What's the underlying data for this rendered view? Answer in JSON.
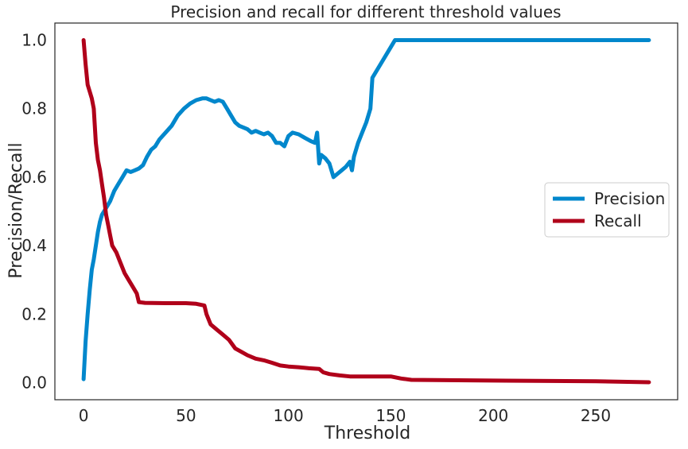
{
  "chart_data": {
    "type": "line",
    "title": "Precision and recall for different threshold values",
    "xlabel": "Threshold",
    "ylabel": "Precision/Recall",
    "xlim": [
      -14,
      290
    ],
    "ylim": [
      -0.05,
      1.05
    ],
    "x_ticks": [
      0,
      50,
      100,
      150,
      200,
      250
    ],
    "y_ticks": [
      0.0,
      0.2,
      0.4,
      0.6,
      0.8,
      1.0
    ],
    "x_tick_labels": [
      "0",
      "50",
      "100",
      "150",
      "200",
      "250"
    ],
    "y_tick_labels": [
      "0.0",
      "0.2",
      "0.4",
      "0.6",
      "0.8",
      "1.0"
    ],
    "grid": false,
    "legend": "center-right",
    "series": [
      {
        "name": "Precision",
        "color": "#0087cc",
        "points": [
          [
            0,
            0.01
          ],
          [
            1,
            0.12
          ],
          [
            2,
            0.2
          ],
          [
            3,
            0.27
          ],
          [
            4,
            0.33
          ],
          [
            5,
            0.36
          ],
          [
            6,
            0.4
          ],
          [
            7,
            0.44
          ],
          [
            8,
            0.47
          ],
          [
            9,
            0.49
          ],
          [
            10,
            0.5
          ],
          [
            11,
            0.51
          ],
          [
            13,
            0.53
          ],
          [
            15,
            0.56
          ],
          [
            17,
            0.58
          ],
          [
            19,
            0.6
          ],
          [
            21,
            0.62
          ],
          [
            23,
            0.615
          ],
          [
            25,
            0.62
          ],
          [
            27,
            0.625
          ],
          [
            29,
            0.635
          ],
          [
            31,
            0.66
          ],
          [
            33,
            0.68
          ],
          [
            35,
            0.69
          ],
          [
            37,
            0.71
          ],
          [
            40,
            0.73
          ],
          [
            43,
            0.75
          ],
          [
            46,
            0.78
          ],
          [
            49,
            0.8
          ],
          [
            52,
            0.815
          ],
          [
            55,
            0.825
          ],
          [
            58,
            0.83
          ],
          [
            60,
            0.83
          ],
          [
            62,
            0.825
          ],
          [
            64,
            0.82
          ],
          [
            66,
            0.825
          ],
          [
            68,
            0.82
          ],
          [
            70,
            0.8
          ],
          [
            72,
            0.78
          ],
          [
            74,
            0.76
          ],
          [
            76,
            0.75
          ],
          [
            78,
            0.745
          ],
          [
            80,
            0.74
          ],
          [
            82,
            0.73
          ],
          [
            84,
            0.735
          ],
          [
            86,
            0.73
          ],
          [
            88,
            0.725
          ],
          [
            90,
            0.73
          ],
          [
            92,
            0.72
          ],
          [
            94,
            0.7
          ],
          [
            96,
            0.7
          ],
          [
            98,
            0.69
          ],
          [
            100,
            0.72
          ],
          [
            102,
            0.73
          ],
          [
            105,
            0.725
          ],
          [
            108,
            0.715
          ],
          [
            111,
            0.705
          ],
          [
            113,
            0.7
          ],
          [
            114,
            0.73
          ],
          [
            115,
            0.64
          ],
          [
            116,
            0.665
          ],
          [
            118,
            0.655
          ],
          [
            120,
            0.64
          ],
          [
            122,
            0.6
          ],
          [
            124,
            0.61
          ],
          [
            126,
            0.62
          ],
          [
            128,
            0.63
          ],
          [
            130,
            0.645
          ],
          [
            131,
            0.62
          ],
          [
            132,
            0.66
          ],
          [
            134,
            0.7
          ],
          [
            136,
            0.73
          ],
          [
            138,
            0.76
          ],
          [
            140,
            0.8
          ],
          [
            141,
            0.89
          ],
          [
            146,
            0.94
          ],
          [
            150,
            0.98
          ],
          [
            152,
            1.0
          ],
          [
            200,
            1.0
          ],
          [
            276,
            1.0
          ]
        ]
      },
      {
        "name": "Recall",
        "color": "#b0001a",
        "points": [
          [
            0,
            1.0
          ],
          [
            1,
            0.93
          ],
          [
            2,
            0.87
          ],
          [
            3,
            0.85
          ],
          [
            4,
            0.83
          ],
          [
            5,
            0.8
          ],
          [
            6,
            0.7
          ],
          [
            7,
            0.65
          ],
          [
            8,
            0.62
          ],
          [
            9,
            0.58
          ],
          [
            10,
            0.54
          ],
          [
            11,
            0.49
          ],
          [
            12,
            0.46
          ],
          [
            13,
            0.43
          ],
          [
            14,
            0.4
          ],
          [
            16,
            0.38
          ],
          [
            18,
            0.35
          ],
          [
            20,
            0.32
          ],
          [
            22,
            0.3
          ],
          [
            24,
            0.28
          ],
          [
            26,
            0.26
          ],
          [
            27,
            0.235
          ],
          [
            30,
            0.233
          ],
          [
            40,
            0.232
          ],
          [
            50,
            0.232
          ],
          [
            55,
            0.23
          ],
          [
            59,
            0.225
          ],
          [
            60,
            0.2
          ],
          [
            62,
            0.17
          ],
          [
            65,
            0.155
          ],
          [
            68,
            0.14
          ],
          [
            71,
            0.125
          ],
          [
            74,
            0.1
          ],
          [
            77,
            0.09
          ],
          [
            80,
            0.08
          ],
          [
            84,
            0.07
          ],
          [
            88,
            0.065
          ],
          [
            92,
            0.058
          ],
          [
            96,
            0.05
          ],
          [
            100,
            0.047
          ],
          [
            105,
            0.045
          ],
          [
            110,
            0.042
          ],
          [
            115,
            0.04
          ],
          [
            117,
            0.03
          ],
          [
            120,
            0.025
          ],
          [
            125,
            0.021
          ],
          [
            130,
            0.018
          ],
          [
            140,
            0.018
          ],
          [
            150,
            0.018
          ],
          [
            155,
            0.012
          ],
          [
            160,
            0.008
          ],
          [
            200,
            0.006
          ],
          [
            250,
            0.004
          ],
          [
            276,
            0.001
          ]
        ]
      }
    ]
  }
}
